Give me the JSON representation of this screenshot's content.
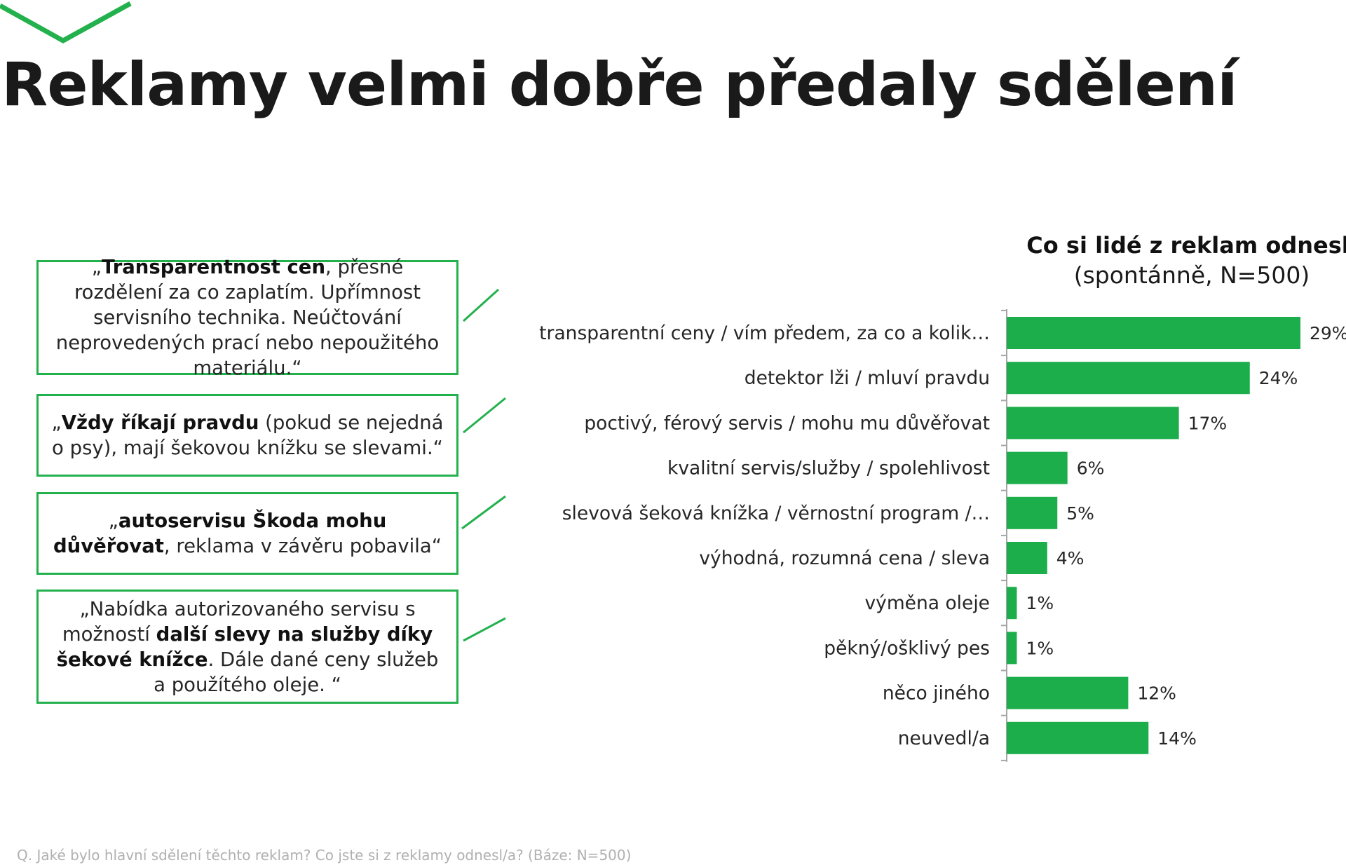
{
  "title": "Reklamy velmi dobře předaly sdělení",
  "colors": {
    "accent": "#23b14d",
    "bar": "#1cae4b",
    "text": "#1a1a1a",
    "footnote": "#b0b0b0"
  },
  "quotes": [
    {
      "parts": [
        {
          "text": "„",
          "bold": false
        },
        {
          "text": "Transparentnost cen",
          "bold": true
        },
        {
          "text": ", přesné rozdělení za co zaplatím. Upřímnost servisního technika. Neúčtování neprovedených prací nebo nepoužitého materiálu.“",
          "bold": false
        }
      ]
    },
    {
      "parts": [
        {
          "text": "„",
          "bold": false
        },
        {
          "text": "Vždy říkají pravdu",
          "bold": true
        },
        {
          "text": " (pokud se nejedná o psy), mají šekovou knížku se slevami.“",
          "bold": false
        }
      ]
    },
    {
      "parts": [
        {
          "text": "„",
          "bold": false
        },
        {
          "text": "autoservisu Škoda mohu důvěřovat",
          "bold": true
        },
        {
          "text": ", reklama v závěru pobavila“",
          "bold": false
        }
      ]
    },
    {
      "parts": [
        {
          "text": "„Nabídka autorizovaného servisu s možností ",
          "bold": false
        },
        {
          "text": "další slevy na služby díky šekové knížce",
          "bold": true
        },
        {
          "text": ". Dále dané ceny služeb a použítého oleje. “",
          "bold": false
        }
      ]
    }
  ],
  "chart_data": {
    "type": "bar",
    "orientation": "horizontal",
    "title": "Co si lidé z reklam odnesli",
    "subtitle": "(spontánně, N=500)",
    "categories": [
      "transparentní ceny / vím předem, za co a kolik…",
      "detektor lži / mluví pravdu",
      "poctivý, férový servis / mohu mu důvěřovat",
      "kvalitní servis/služby / spolehlivost",
      "slevová šeková knížka / věrnostní program /…",
      "výhodná, rozumná cena / sleva",
      "výměna oleje",
      "pěkný/ošklivý pes",
      "něco jiného",
      "neuvedl/a"
    ],
    "values": [
      29,
      24,
      17,
      6,
      5,
      4,
      1,
      1,
      12,
      14
    ],
    "value_labels": [
      "29%",
      "24%",
      "17%",
      "6%",
      "5%",
      "4%",
      "1%",
      "1%",
      "12%",
      "14%"
    ],
    "xlim": [
      0,
      29
    ],
    "grid": false,
    "legend": "none"
  },
  "footnote": "Q. Jaké bylo hlavní sdělení těchto reklam? Co jste si z reklamy odnesl/a? (Báze: N=500)"
}
